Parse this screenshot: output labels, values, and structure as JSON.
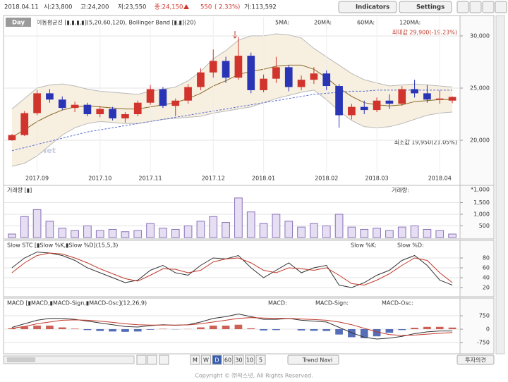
{
  "header": {
    "date": "2018.04.11",
    "open": "시:23,800",
    "high": "고:24,200",
    "low": "저:23,550",
    "close": "종:24,150",
    "change": "550",
    "change_pct": "( 2.33%)",
    "volume": "거:113,592",
    "buttons": [
      "Indicators",
      "Settings"
    ]
  },
  "price_panel": {
    "period_button": "Day",
    "indicator_label": "이동평균선 [▮,▮,▮,▮](5,20,60,120), Bollinger Band [▮,▮](20)",
    "ma_legend": [
      "5MA:",
      "20MA:",
      "60MA:",
      "120MA:"
    ],
    "scale_label": "linear",
    "max_note": "최대값 29,900(-19.23%)",
    "min_note": "최소값 19,950(21.05%)",
    "watermark": "ⓒPAXNet"
  },
  "chart_data": [
    {
      "type": "candlestick",
      "up_color": "#d0342c",
      "down_color": "#2a35b5",
      "band_fill": "#f7efe0",
      "categories": [
        null,
        null,
        "2017.09",
        null,
        null,
        null,
        null,
        "2017.10",
        null,
        null,
        null,
        "2017.11",
        null,
        null,
        null,
        null,
        "2017.12",
        null,
        null,
        null,
        "2018.01",
        null,
        null,
        null,
        null,
        "2018.02",
        null,
        null,
        null,
        "2018.03",
        null,
        null,
        null,
        null,
        "2018.04",
        null
      ],
      "open": [
        20000,
        20500,
        22600,
        24500,
        23900,
        23100,
        23400,
        22500,
        23000,
        22100,
        22500,
        23600,
        24900,
        23300,
        23800,
        25100,
        26500,
        27600,
        26000,
        28100,
        24800,
        25900,
        27000,
        25100,
        25800,
        26400,
        25200,
        22400,
        23200,
        22900,
        23800,
        23500,
        24900,
        24500,
        23900,
        23800
      ],
      "high": [
        20600,
        22800,
        24800,
        24900,
        24200,
        23700,
        23600,
        23300,
        23200,
        22700,
        23800,
        25300,
        25100,
        24000,
        25400,
        26900,
        28700,
        28000,
        29900,
        28400,
        26300,
        28000,
        27200,
        26200,
        27000,
        26700,
        25400,
        23500,
        23800,
        24100,
        24400,
        25200,
        25800,
        25300,
        24800,
        24200
      ],
      "low": [
        19950,
        20400,
        22400,
        23600,
        22900,
        22700,
        22300,
        22200,
        21900,
        21700,
        22300,
        23400,
        23100,
        22300,
        23500,
        24800,
        26000,
        25500,
        25800,
        24500,
        24600,
        25500,
        24700,
        24800,
        25400,
        24800,
        21200,
        22000,
        22500,
        22700,
        23000,
        23300,
        24100,
        23600,
        23500,
        23550
      ],
      "close": [
        20500,
        22600,
        24500,
        23900,
        23100,
        23400,
        22500,
        23000,
        22100,
        22500,
        23600,
        24900,
        23300,
        23800,
        25100,
        26500,
        27600,
        26000,
        28100,
        24800,
        25900,
        27000,
        25100,
        25800,
        26400,
        25200,
        22400,
        23200,
        22900,
        23800,
        23500,
        24900,
        24500,
        23900,
        24000,
        24150
      ],
      "overlays": [
        {
          "color": "#b9b9b9",
          "values": [
            23000,
            24000,
            25000,
            25300,
            25400,
            25200,
            24900,
            24700,
            24600,
            24500,
            24400,
            24700,
            24900,
            25100,
            25700,
            26600,
            27800,
            28600,
            29600,
            30000,
            30000,
            30200,
            30100,
            29800,
            28800,
            28000,
            27200,
            26400,
            25800,
            25500,
            25200,
            25300,
            25400,
            25300,
            25200,
            25100
          ]
        },
        {
          "color": "#b9b9b9",
          "values": [
            17500,
            17800,
            18500,
            19500,
            20500,
            21200,
            21600,
            21800,
            21700,
            21600,
            21600,
            21800,
            22000,
            22100,
            22200,
            22300,
            22600,
            22800,
            23000,
            23200,
            23600,
            24000,
            24300,
            24600,
            24800,
            23900,
            22800,
            21900,
            21300,
            21200,
            21300,
            21600,
            22000,
            22400,
            22600,
            22700
          ]
        },
        {
          "color": "#8a6a2a",
          "values": [
            20300,
            21000,
            21800,
            22400,
            22900,
            23200,
            23300,
            23200,
            23100,
            23000,
            23000,
            23200,
            23400,
            23600,
            24000,
            24500,
            25200,
            25700,
            26300,
            26600,
            26800,
            27100,
            27200,
            27200,
            26800,
            26000,
            25000,
            24200,
            23600,
            23400,
            23300,
            23400,
            23700,
            23800,
            23900,
            23900
          ]
        },
        {
          "color": "#5a6fd0",
          "values": [
            19000,
            19300,
            19600,
            19900,
            20200,
            20500,
            20800,
            21000,
            21200,
            21400,
            21600,
            21800,
            22000,
            22200,
            22400,
            22600,
            22800,
            23000,
            23200,
            23400,
            23600,
            23800,
            24000,
            24200,
            24400,
            24500,
            24600,
            24700,
            24700,
            24800,
            24800,
            24800,
            24800,
            24800,
            24800,
            24800
          ]
        }
      ],
      "ylim": [
        17030,
        31820
      ],
      "yticks": [
        {
          "value": 20000,
          "label": "20,000"
        },
        {
          "value": 25000,
          "label": "25,000"
        },
        {
          "value": 30000,
          "label": "30,000"
        }
      ],
      "grid": true
    },
    {
      "type": "bar",
      "title": "거래량 [▮]",
      "unit_label": "*1,000",
      "series": [
        {
          "name": "거래량:",
          "color": "#8a72b8",
          "values": [
            150,
            900,
            1200,
            700,
            400,
            300,
            500,
            300,
            350,
            250,
            300,
            600,
            400,
            350,
            500,
            700,
            900,
            650,
            1700,
            1100,
            600,
            1000,
            700,
            450,
            600,
            500,
            1000,
            450,
            350,
            400,
            300,
            450,
            500,
            350,
            300,
            150
          ]
        }
      ],
      "ylim": [
        0,
        2150
      ],
      "yticks": [
        500,
        {
          "value": 1000,
          "label": "1,000"
        },
        {
          "value": 1500,
          "label": "1,500"
        }
      ],
      "grid": true
    },
    {
      "type": "line",
      "title": "Slow STC [▮Slow %K,▮Slow %D](15,5,3)",
      "series": [
        {
          "name": "Slow %K:",
          "color": "#333333",
          "values": [
            60,
            80,
            92,
            90,
            85,
            75,
            60,
            50,
            40,
            30,
            35,
            55,
            65,
            50,
            45,
            65,
            80,
            78,
            85,
            60,
            40,
            55,
            70,
            50,
            60,
            65,
            25,
            20,
            30,
            45,
            55,
            75,
            85,
            65,
            35,
            25
          ]
        },
        {
          "name": "Slow %D:",
          "color": "#c0392b",
          "values": [
            50,
            70,
            85,
            90,
            88,
            80,
            70,
            58,
            48,
            38,
            33,
            45,
            58,
            57,
            50,
            55,
            72,
            78,
            80,
            70,
            55,
            50,
            60,
            58,
            55,
            60,
            45,
            28,
            25,
            35,
            48,
            65,
            80,
            75,
            50,
            30
          ]
        }
      ],
      "ylim": [
        0,
        100
      ],
      "yticks": [
        20,
        40,
        60,
        80
      ],
      "grid": true
    },
    {
      "type": "macd",
      "title": "MACD [▮MACD,▮MACD-Sign,▮MACD-Osc](12,26,9)",
      "osc_colors": [
        "#c0392b",
        "#2a4aa5"
      ],
      "series": [
        {
          "name": "MACD:",
          "color": "#333333",
          "values": [
            100,
            300,
            500,
            600,
            600,
            550,
            450,
            350,
            250,
            150,
            120,
            200,
            250,
            220,
            250,
            400,
            600,
            700,
            850,
            700,
            550,
            550,
            600,
            500,
            450,
            400,
            100,
            -200,
            -450,
            -550,
            -500,
            -400,
            -250,
            -150,
            -100,
            -100
          ]
        },
        {
          "name": "MACD-Sign:",
          "color": "#c0392b",
          "values": [
            50,
            150,
            300,
            400,
            500,
            520,
            500,
            450,
            380,
            300,
            250,
            230,
            230,
            230,
            240,
            300,
            400,
            500,
            600,
            650,
            620,
            600,
            600,
            570,
            540,
            500,
            400,
            250,
            50,
            -150,
            -300,
            -350,
            -330,
            -280,
            -230,
            -190
          ]
        },
        {
          "name": "MACD-Osc:",
          "values": [
            50,
            150,
            200,
            200,
            100,
            30,
            -50,
            -100,
            -130,
            -150,
            -130,
            -30,
            20,
            -10,
            10,
            100,
            200,
            200,
            250,
            50,
            -70,
            -50,
            0,
            -70,
            -90,
            -100,
            -300,
            -450,
            -500,
            -400,
            -200,
            -50,
            80,
            130,
            130,
            90
          ]
        }
      ],
      "ylim": [
        -1300,
        1225
      ],
      "yticks": [
        -750,
        0,
        750
      ],
      "grid": true
    }
  ],
  "footer": {
    "periods": [
      "M",
      "W",
      "D",
      "60",
      "30",
      "10",
      "5"
    ],
    "trend_button": "Trend Navi",
    "opinion_button": "투자의견",
    "copyright": "Copyright © ㈜팍스넷, All Rights Reserved."
  }
}
